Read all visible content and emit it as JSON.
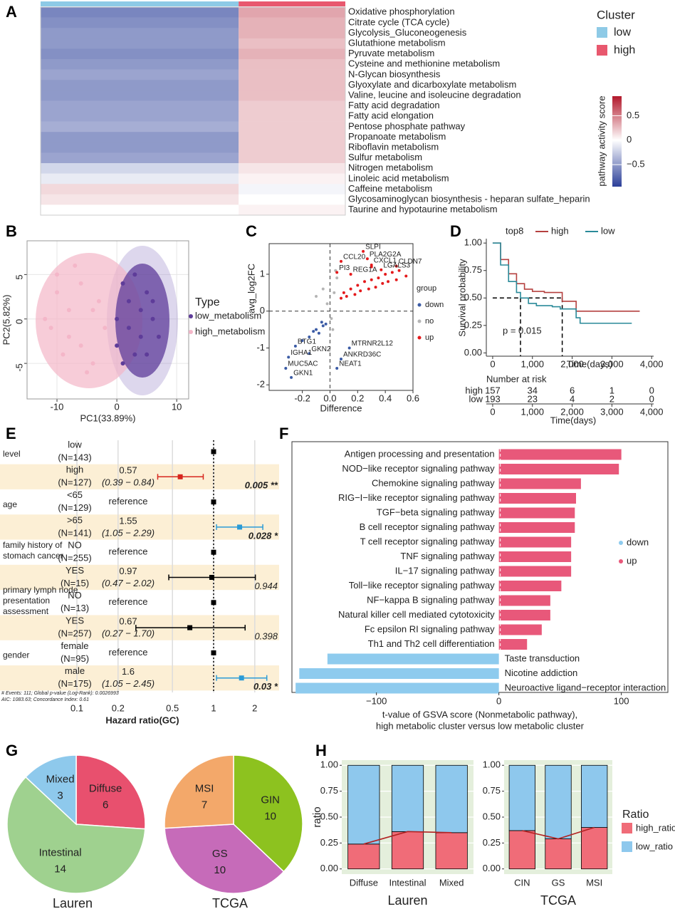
{
  "chart_data": [
    {
      "type": "heatmap",
      "label": "A",
      "rows": [
        "Oxidative phosphorylation",
        "Citrate cycle (TCA cycle)",
        "Glycolysis_Gluconeogenesis",
        "Glutathione metabolism",
        "Pyruvate metabolism",
        "Cysteine and methionine metabolism",
        "N-Glycan biosynthesis",
        "Glyoxylate and dicarboxylate metabolism",
        "Valine, leucine and isoleucine degradation",
        "Fatty acid degradation",
        "Fatty acid elongation",
        "Pentose phosphate pathway",
        "Propanoate metabolism",
        "Riboflavin metabolism",
        "Sulfur metabolism",
        "Nitrogen metabolism",
        "Linoleic acid metabolism",
        "Caffeine metabolism",
        "Glycosaminoglycan biosynthesis - heparan sulfate_heparin",
        "Taurine and hypotaurine metabolism"
      ],
      "values": [
        [
          -0.6,
          0.35
        ],
        [
          -0.55,
          0.3
        ],
        [
          -0.5,
          0.3
        ],
        [
          -0.5,
          0.25
        ],
        [
          -0.55,
          0.3
        ],
        [
          -0.5,
          0.25
        ],
        [
          -0.45,
          0.25
        ],
        [
          -0.5,
          0.25
        ],
        [
          -0.5,
          0.25
        ],
        [
          -0.45,
          0.2
        ],
        [
          -0.45,
          0.2
        ],
        [
          -0.4,
          0.2
        ],
        [
          -0.5,
          0.2
        ],
        [
          -0.5,
          0.2
        ],
        [
          -0.45,
          0.2
        ],
        [
          -0.2,
          0.1
        ],
        [
          -0.1,
          0.05
        ],
        [
          0.15,
          -0.05
        ],
        [
          0.1,
          0.0
        ],
        [
          0.0,
          0.05
        ]
      ],
      "legend_title": "Cluster",
      "clusters": [
        {
          "name": "low",
          "color": "#8ecae6"
        },
        {
          "name": "high",
          "color": "#e8586e"
        }
      ],
      "colorbar_title": "pathway activity score",
      "colorbar_ticks": [
        0.5,
        0,
        {
          "value": -0.5,
          "label": "−0.5"
        }
      ],
      "clim": [
        -0.95,
        0.9
      ],
      "colors": [
        "#2b3f99",
        "#ffffff",
        "#b2182b"
      ]
    },
    {
      "type": "scatter",
      "label": "B",
      "xlabel": "PC1(33.89%)",
      "ylabel": "PC2(5.82%)",
      "xlim": [
        -15,
        12
      ],
      "ylim": [
        -9,
        8.8
      ],
      "xticks": [
        -10,
        0,
        10
      ],
      "yticks": [
        -5,
        0,
        5
      ],
      "grid": true,
      "legend_title": "Type",
      "series": [
        {
          "name": "low_metabolism",
          "color": "#5e3c99",
          "x": [
            0,
            2,
            4,
            6,
            1,
            3,
            5,
            2,
            4,
            7,
            0,
            3,
            6,
            1,
            5
          ],
          "y": [
            0,
            2,
            -2,
            0,
            4,
            -4,
            3,
            -1,
            1,
            -2,
            -3,
            5,
            2,
            -5,
            -4
          ]
        },
        {
          "name": "high_metabolism",
          "color": "#f4b6c8",
          "x": [
            -12,
            -10,
            -8,
            -6,
            -4,
            -9,
            -7,
            -5,
            -11,
            -3,
            -6,
            -8,
            -2,
            -10,
            -4
          ],
          "y": [
            0,
            3,
            -2,
            4,
            1,
            -4,
            6,
            -6,
            -1,
            2,
            -3,
            1,
            -1,
            5,
            -5
          ]
        }
      ]
    },
    {
      "type": "volcano",
      "label": "C",
      "xlabel": "Difference",
      "ylabel": "avg_log2FC",
      "xlim": [
        -0.44,
        0.6
      ],
      "ylim": [
        -2.15,
        1.83
      ],
      "xticks": [
        -0.2,
        {
          "value": 0,
          "label": "0.0"
        },
        0.2,
        0.4,
        0.6
      ],
      "yticks": [
        -2,
        -1,
        0,
        1
      ],
      "legend_title": "group",
      "series": [
        {
          "name": "down",
          "color": "#3b5ba5",
          "x": [
            -0.1,
            -0.05,
            -0.15,
            -0.08,
            -0.12,
            -0.03,
            -0.2,
            -0.06
          ],
          "y": [
            -0.5,
            -0.4,
            -0.7,
            -0.6,
            -0.55,
            -0.35,
            -0.8,
            -0.3
          ]
        },
        {
          "name": "no",
          "color": "#b5b5b5",
          "x": [
            -0.02,
            0.01,
            0.03,
            -0.05,
            0.02,
            0.05,
            -0.1,
            0.04
          ],
          "y": [
            0.2,
            -0.2,
            0.5,
            0.6,
            -0.5,
            0.9,
            0.4,
            1.1
          ]
        },
        {
          "name": "up",
          "color": "#e41a1c",
          "x": [
            0.08,
            0.1,
            0.15,
            0.2,
            0.25,
            0.3,
            0.35,
            0.4,
            0.45,
            0.5,
            0.12,
            0.18,
            0.22,
            0.28,
            0.33,
            0.38,
            0.42,
            0.48,
            0.55,
            0.3
          ],
          "y": [
            0.35,
            0.5,
            0.6,
            0.7,
            0.8,
            0.85,
            0.9,
            1.0,
            1.05,
            1.1,
            0.4,
            0.45,
            0.55,
            0.6,
            0.65,
            0.75,
            0.8,
            0.85,
            0.95,
            1.2
          ]
        }
      ],
      "genes": [
        {
          "name": "SLPI",
          "x": 0.24,
          "y": 1.62
        },
        {
          "name": "PLA2G2A",
          "x": 0.27,
          "y": 1.42
        },
        {
          "name": "CCL20",
          "x": 0.08,
          "y": 1.35
        },
        {
          "name": "CXCL1",
          "x": 0.3,
          "y": 1.25
        },
        {
          "name": "CLDN7",
          "x": 0.48,
          "y": 1.22
        },
        {
          "name": "LGALS3",
          "x": 0.37,
          "y": 1.12
        },
        {
          "name": "PI3",
          "x": 0.05,
          "y": 1.05
        },
        {
          "name": "REG1A",
          "x": 0.15,
          "y": 1.0
        },
        {
          "name": "BTG1",
          "x": -0.25,
          "y": -0.95
        },
        {
          "name": "MTRNR2L12",
          "x": 0.14,
          "y": -1.0
        },
        {
          "name": "GKN2",
          "x": -0.15,
          "y": -1.15
        },
        {
          "name": "IGHA1",
          "x": -0.3,
          "y": -1.25
        },
        {
          "name": "ANKRD36C",
          "x": 0.08,
          "y": -1.3
        },
        {
          "name": "MUC5AC",
          "x": -0.32,
          "y": -1.55
        },
        {
          "name": "NEAT1",
          "x": 0.05,
          "y": -1.55
        },
        {
          "name": "GKN1",
          "x": -0.28,
          "y": -1.8
        }
      ]
    },
    {
      "type": "survival",
      "label": "D",
      "legend_title": "top8",
      "xlabel": "Time(days)",
      "ylabel": "Survival probability",
      "xlim": [
        -160,
        4050
      ],
      "ylim": [
        -0.03,
        1.04
      ],
      "xticks": [
        0,
        {
          "value": 1000,
          "label": "1,000"
        },
        {
          "value": 2000,
          "label": "2,000"
        },
        {
          "value": 3000,
          "label": "3,000"
        },
        {
          "value": 4000,
          "label": "4,000"
        }
      ],
      "yticks": [
        {
          "value": 0,
          "label": "0.00"
        },
        0.25,
        {
          "value": 0.5,
          "label": "0.50"
        },
        0.75,
        {
          "value": 1,
          "label": "1.00"
        }
      ],
      "annotation": "p = 0.015",
      "risk_title": "Number at risk",
      "series": [
        {
          "name": "high",
          "color": "#b5403f",
          "x": [
            0,
            200,
            400,
            600,
            800,
            1000,
            1300,
            1750,
            2100,
            3700
          ],
          "y": [
            1,
            0.85,
            0.72,
            0.63,
            0.58,
            0.56,
            0.55,
            0.47,
            0.38,
            0.38
          ],
          "median": 1750,
          "at_risk": [
            157,
            34,
            6,
            1,
            0
          ]
        },
        {
          "name": "low",
          "color": "#2a8a99",
          "x": [
            0,
            200,
            400,
            600,
            700,
            900,
            1100,
            1500,
            1700,
            2100,
            2200,
            3500
          ],
          "y": [
            1,
            0.8,
            0.65,
            0.55,
            0.5,
            0.45,
            0.43,
            0.42,
            0.4,
            0.32,
            0.27,
            0.27
          ],
          "median": 700,
          "at_risk": [
            193,
            23,
            4,
            2,
            0
          ]
        }
      ]
    },
    {
      "type": "forest",
      "label": "E",
      "xlabel": "Hazard ratio(GC)",
      "xlim": [
        0.08,
        2.6
      ],
      "xticks": [
        0.1,
        0.2,
        0.5,
        1,
        2
      ],
      "log": true,
      "footnotes": [
        "# Events: 111; Global p-value (Log-Rank): 0.0026993",
        "AIC: 1083.63; Concordance Index: 0.61"
      ],
      "groups": [
        {
          "variable": [
            "level"
          ],
          "rows": [
            {
              "level": "low",
              "n": "(N=143)",
              "hr": 1
            },
            {
              "level": "high",
              "n": "(N=127)",
              "hr": 0.57,
              "ci": [
                0.39,
                0.84
              ],
              "ci_label": "(0.39 − 0.84)",
              "p_label": "0.005 **",
              "color": "#d7261e"
            }
          ]
        },
        {
          "variable": [
            "age"
          ],
          "rows": [
            {
              "level": "<65",
              "n": "(N=129)",
              "hr": 1,
              "estimate_label": "reference"
            },
            {
              "level": ">65",
              "n": "(N=141)",
              "hr": 1.55,
              "ci": [
                1.05,
                2.29
              ],
              "ci_label": "(1.05 − 2.29)",
              "p_label": "0.028 *",
              "color": "#2b9bd6"
            }
          ]
        },
        {
          "variable": [
            "family history of",
            "stomach cancer"
          ],
          "rows": [
            {
              "level": "NO",
              "n": "(N=255)",
              "hr": 1,
              "estimate_label": "reference"
            },
            {
              "level": "YES",
              "n": "(N=15)",
              "hr": 0.97,
              "ci": [
                0.47,
                2.02
              ],
              "ci_label": "(0.47 − 2.02)",
              "p_label": "0.944",
              "color": "#000000"
            }
          ]
        },
        {
          "variable": [
            "primary lymph node",
            "presentation",
            "assessment"
          ],
          "rows": [
            {
              "level": "NO",
              "n": "(N=13)",
              "hr": 1,
              "estimate_label": "reference"
            },
            {
              "level": "YES",
              "n": "(N=257)",
              "hr": 0.67,
              "ci": [
                0.27,
                1.7
              ],
              "ci_label": "(0.27 − 1.70)",
              "p_label": "0.398",
              "color": "#000000"
            }
          ]
        },
        {
          "variable": [
            "gender"
          ],
          "rows": [
            {
              "level": "female",
              "n": "(N=95)",
              "hr": 1,
              "estimate_label": "reference"
            },
            {
              "level": "male",
              "n": "(N=175)",
              "hr": 1.6,
              "ci": [
                1.05,
                2.45
              ],
              "ci_label": "(1.05 − 2.45)",
              "p_label": "0.03 *",
              "color": "#2b9bd6"
            }
          ]
        }
      ]
    },
    {
      "type": "hbar",
      "label": "F",
      "categories": [
        "Antigen processing and presentation",
        "NOD−like receptor signaling pathway",
        "Chemokine signaling pathway",
        "RIG−I−like receptor signaling pathway",
        "TGF−beta signaling pathway",
        "B cell receptor signaling pathway",
        "T cell receptor signaling pathway",
        "TNF signaling pathway",
        "IL−17 signaling pathway",
        "Toll−like receptor signaling pathway",
        "NF−kappa B signaling pathway",
        "Natural killer cell mediated cytotoxicity",
        "Fc epsilon RI signaling pathway",
        "Th1 and Th2 cell differentiation",
        "Taste transduction",
        "Nicotine addiction",
        "Neuroactive ligand−receptor interaction"
      ],
      "values": [
        100,
        98,
        67,
        63,
        62,
        62,
        59,
        59,
        59,
        51,
        42,
        42,
        35,
        23,
        -140,
        -163,
        -166
      ],
      "legend": [
        {
          "name": "down",
          "color": "#8ecbee"
        },
        {
          "name": "up",
          "color": "#e8587a"
        }
      ],
      "xlim": [
        -169,
        138
      ],
      "xticks": [
        {
          "value": -100,
          "label": "−100"
        },
        0,
        100
      ],
      "xlabel": [
        "t-value of GSVA score (Nonmetabolic pathway),",
        "high metabolic cluster versus  low metabolic cluster"
      ]
    },
    {
      "type": "pie",
      "label": "G",
      "title": "Lauren",
      "categories": [
        "Diffuse",
        "Intestinal",
        "Mixed"
      ],
      "values": [
        6,
        14,
        3
      ],
      "colors": [
        "#e8506e",
        "#9fd18f",
        "#8ec9ec"
      ]
    },
    {
      "type": "pie",
      "title": "TCGA",
      "categories": [
        "GIN",
        "GS",
        "MSI"
      ],
      "values": [
        10,
        10,
        7
      ],
      "colors": [
        "#8dc21f",
        "#c66bb9",
        "#f3a86a"
      ]
    },
    {
      "type": "stacked_bar",
      "label": "H",
      "title": "Lauren",
      "ylabel": "ratio",
      "categories": [
        "Diffuse",
        "Intestinal",
        "Mixed"
      ],
      "ylim": [
        -0.05,
        1.05
      ],
      "yticks": [
        {
          "value": 0,
          "label": "0.00"
        },
        0.25,
        {
          "value": 0.5,
          "label": "0.50"
        },
        0.75,
        {
          "value": 1,
          "label": "1.00"
        }
      ],
      "series": [
        {
          "color": "#f06c78",
          "values": [
            0.24,
            0.36,
            0.35
          ]
        },
        {
          "color": "#8ec8ed",
          "values": [
            0.76,
            0.64,
            0.65
          ]
        }
      ]
    },
    {
      "type": "stacked_bar",
      "title": "TCGA",
      "categories": [
        "CIN",
        "GS",
        "MSI"
      ],
      "legend_title": "Ratio",
      "ylim": [
        -0.05,
        1.05
      ],
      "yticks": [
        {
          "value": 0,
          "label": "0.00"
        },
        0.25,
        {
          "value": 0.5,
          "label": "0.50"
        },
        0.75,
        {
          "value": 1,
          "label": "1.00"
        }
      ],
      "series": [
        {
          "name": "high_ratio",
          "color": "#f06c78",
          "values": [
            0.37,
            0.29,
            0.4
          ]
        },
        {
          "name": "low_ratio",
          "color": "#8ec8ed",
          "values": [
            0.63,
            0.71,
            0.6
          ]
        }
      ]
    }
  ]
}
